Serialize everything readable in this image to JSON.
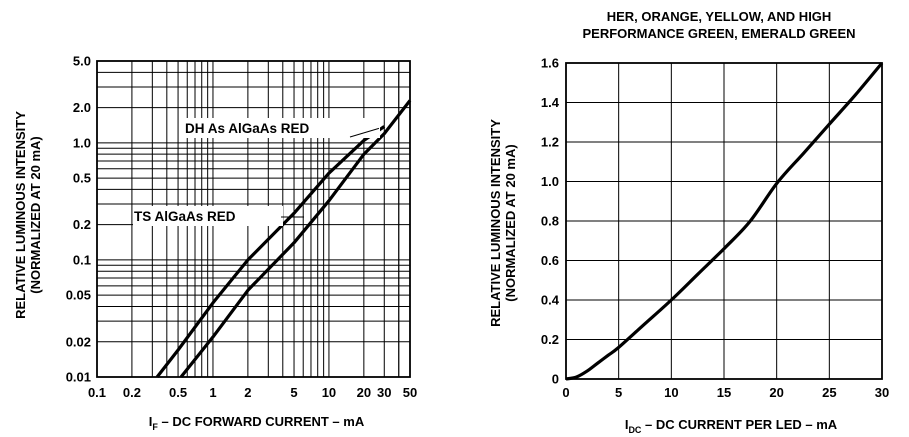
{
  "chart_data": [
    {
      "type": "line",
      "title": "",
      "x_scale": "log",
      "y_scale": "log",
      "xlabel": {
        "prefix": "I",
        "sub": "F",
        "rest": " – DC FORWARD CURRENT – mA"
      },
      "ylabel": [
        "RELATIVE LUMINOUS INTENSITY",
        "(NORMALIZED AT 20 mA)"
      ],
      "xlim": [
        0.1,
        50
      ],
      "ylim": [
        0.01,
        5
      ],
      "x_ticks": [
        0.1,
        0.2,
        0.5,
        1,
        2,
        5,
        10,
        20,
        30,
        50
      ],
      "x_tick_labels": [
        "0.1",
        "0.2",
        "0.5",
        "1",
        "2",
        "5",
        "10",
        "20",
        "30",
        "50"
      ],
      "y_ticks": [
        0.01,
        0.02,
        0.05,
        0.1,
        0.2,
        0.5,
        1,
        2,
        5
      ],
      "y_tick_labels": [
        "0.01",
        "0.02",
        "0.05",
        "0.1",
        "0.2",
        "0.5",
        "1.0",
        "2.0",
        "5.0"
      ],
      "grid": true,
      "series": [
        {
          "name": "DH As AlGaAs RED",
          "x": [
            0.33,
            0.5,
            1,
            2,
            5,
            10,
            20,
            30
          ],
          "y": [
            0.01,
            0.017,
            0.043,
            0.1,
            0.25,
            0.55,
            1.05,
            1.38
          ]
        },
        {
          "name": "TS AlGaAs RED",
          "x": [
            0.53,
            1,
            2,
            5,
            10,
            20,
            30,
            50
          ],
          "y": [
            0.01,
            0.022,
            0.055,
            0.14,
            0.32,
            0.8,
            1.2,
            2.3
          ]
        }
      ]
    },
    {
      "type": "line",
      "title": [
        "HER, ORANGE, YELLOW, AND HIGH",
        "PERFORMANCE GREEN, EMERALD GREEN"
      ],
      "xlabel": {
        "prefix": "I",
        "sub": "DC",
        "rest": " – DC CURRENT PER LED – mA"
      },
      "ylabel": [
        "RELATIVE LUMINOUS INTENSITY",
        "(NORMALIZED AT 20 mA)"
      ],
      "xlim": [
        0,
        30
      ],
      "ylim": [
        0,
        1.6
      ],
      "x_ticks": [
        0,
        5,
        10,
        15,
        20,
        25,
        30
      ],
      "x_tick_labels": [
        "0",
        "5",
        "10",
        "15",
        "20",
        "25",
        "30"
      ],
      "y_ticks": [
        0,
        0.2,
        0.4,
        0.6,
        0.8,
        1.0,
        1.2,
        1.4,
        1.6
      ],
      "y_tick_labels": [
        "0",
        "0.2",
        "0.4",
        "0.6",
        "0.8",
        "1.0",
        "1.2",
        "1.4",
        "1.6"
      ],
      "grid": true,
      "series": [
        {
          "x": [
            0,
            1,
            2,
            3,
            4,
            5,
            7.5,
            10,
            12.5,
            15,
            17.5,
            20,
            22.5,
            25,
            27.5,
            30
          ],
          "y": [
            0,
            0.01,
            0.04,
            0.08,
            0.12,
            0.16,
            0.28,
            0.4,
            0.53,
            0.66,
            0.8,
            0.99,
            1.14,
            1.29,
            1.44,
            1.6
          ]
        }
      ]
    }
  ]
}
